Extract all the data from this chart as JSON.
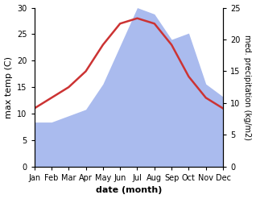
{
  "months": [
    "Jan",
    "Feb",
    "Mar",
    "Apr",
    "May",
    "Jun",
    "Jul",
    "Aug",
    "Sep",
    "Oct",
    "Nov",
    "Dec"
  ],
  "temperature": [
    11,
    13,
    15,
    18,
    23,
    27,
    28,
    27,
    23,
    17,
    13,
    11
  ],
  "precipitation": [
    7,
    7,
    8,
    9,
    13,
    19,
    25,
    24,
    20,
    21,
    13,
    11
  ],
  "temp_color": "#cc3333",
  "precip_color": "#aabbee",
  "temp_ylim": [
    0,
    30
  ],
  "precip_ylim": [
    0,
    25
  ],
  "left_ticks": [
    0,
    5,
    10,
    15,
    20,
    25,
    30
  ],
  "right_ticks": [
    0,
    5,
    10,
    15,
    20,
    25
  ],
  "xlabel": "date (month)",
  "ylabel_left": "max temp (C)",
  "ylabel_right": "med. precipitation (kg/m2)",
  "bg_color": "#ffffff",
  "label_fontsize": 8,
  "tick_fontsize": 7,
  "line_width": 1.8,
  "scale_factor": 1.2
}
